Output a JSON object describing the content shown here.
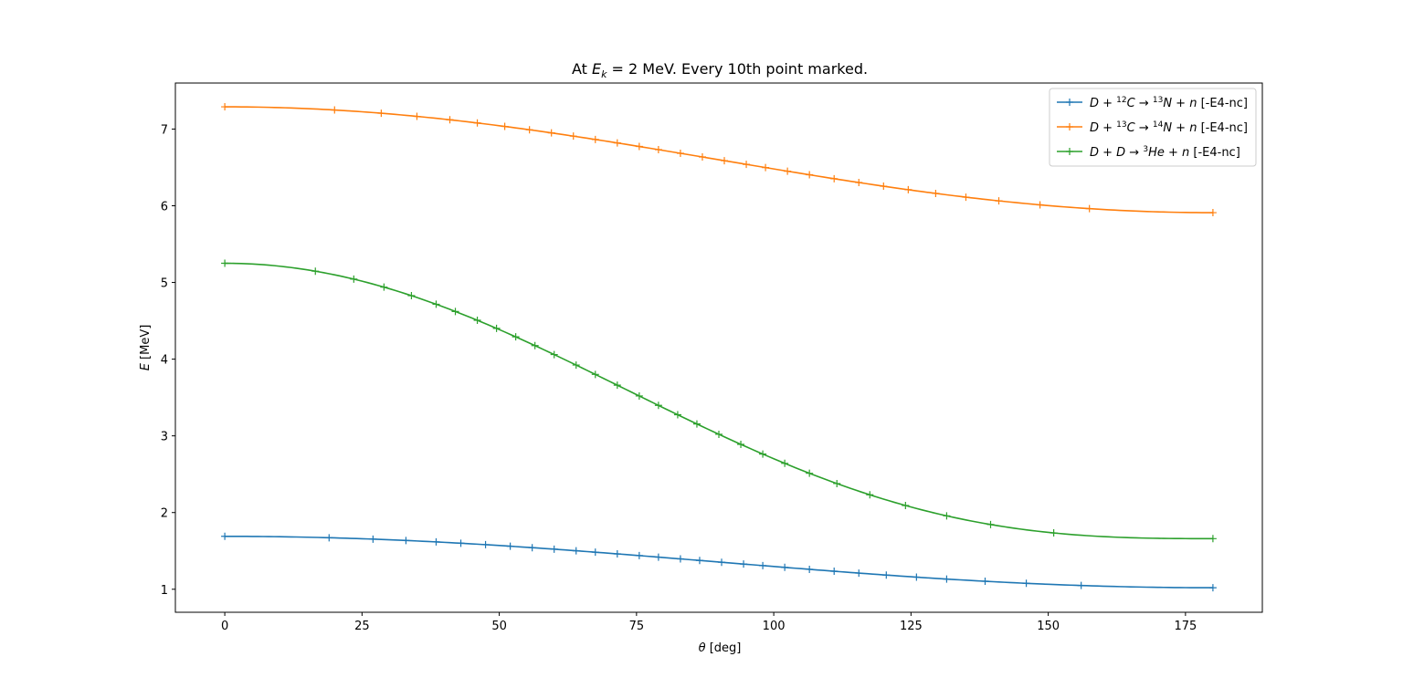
{
  "chart_data": {
    "type": "line",
    "title": {
      "prefix": "At ",
      "var_main": "E",
      "var_sub": "k",
      "suffix": " = 2 MeV. Every 10th point marked."
    },
    "xlabel": {
      "var": "θ",
      "unit": " [deg]"
    },
    "ylabel": {
      "var": "E",
      "unit": " [MeV]"
    },
    "xlim": [
      -9,
      189
    ],
    "ylim": [
      0.7,
      7.6
    ],
    "xticks": [
      0,
      25,
      50,
      75,
      100,
      125,
      150,
      175
    ],
    "yticks": [
      1,
      2,
      3,
      4,
      5,
      6,
      7
    ],
    "grid": false,
    "legend_position": "top-right",
    "marker": "+",
    "series": [
      {
        "name": "D + ¹²C → ¹³N + n [-E4-nc]",
        "legend": {
          "p1": "D + ",
          "sup1": "12",
          "p2": "C → ",
          "sup2": "13",
          "p3": "N + n",
          "tag": " [-E4-nc]"
        },
        "color": "#1f77b4",
        "E_min": 1.02,
        "E_max": 1.69,
        "shape_power": 1.0,
        "marker_theta": [
          0,
          19,
          27,
          33,
          38.5,
          43,
          47.5,
          52,
          56,
          60,
          64,
          67.5,
          71.5,
          75.5,
          79,
          83,
          86.5,
          90.5,
          94.5,
          98,
          102,
          106.5,
          111,
          115.5,
          120.5,
          126,
          131.5,
          138.5,
          146,
          156,
          180
        ]
      },
      {
        "name": "D + ¹³C → ¹⁴N + n [-E4-nc]",
        "legend": {
          "p1": "D + ",
          "sup1": "13",
          "p2": "C → ",
          "sup2": "14",
          "p3": "N + n",
          "tag": " [-E4-nc]"
        },
        "color": "#ff7f0e",
        "E_min": 5.91,
        "E_max": 7.29,
        "shape_power": 1.0,
        "marker_theta": [
          0,
          20,
          28.5,
          35,
          41,
          46,
          51,
          55.5,
          59.5,
          63.5,
          67.5,
          71.5,
          75.5,
          79,
          83,
          87,
          91,
          95,
          98.5,
          102.5,
          106.5,
          111,
          115.5,
          120,
          124.5,
          129.5,
          135,
          141,
          148.5,
          157.5,
          180
        ]
      },
      {
        "name": "D + D → ³He + n [-E4-nc]",
        "legend": {
          "p1": "D + D → ",
          "sup1": "3",
          "p2": "He + n",
          "sup2": "",
          "p3": "",
          "tag": " [-E4-nc]"
        },
        "color": "#2ca02c",
        "E_min": 1.66,
        "E_max": 5.25,
        "shape_power": 1.4,
        "marker_theta": [
          0,
          16.5,
          23.5,
          29,
          34,
          38.5,
          42,
          46,
          49.5,
          53,
          56.5,
          60,
          64,
          67.5,
          71.5,
          75.5,
          79,
          82.5,
          86,
          90,
          94,
          98,
          102,
          106.5,
          111.5,
          117.5,
          124,
          131.5,
          139.5,
          151,
          180
        ]
      }
    ]
  }
}
